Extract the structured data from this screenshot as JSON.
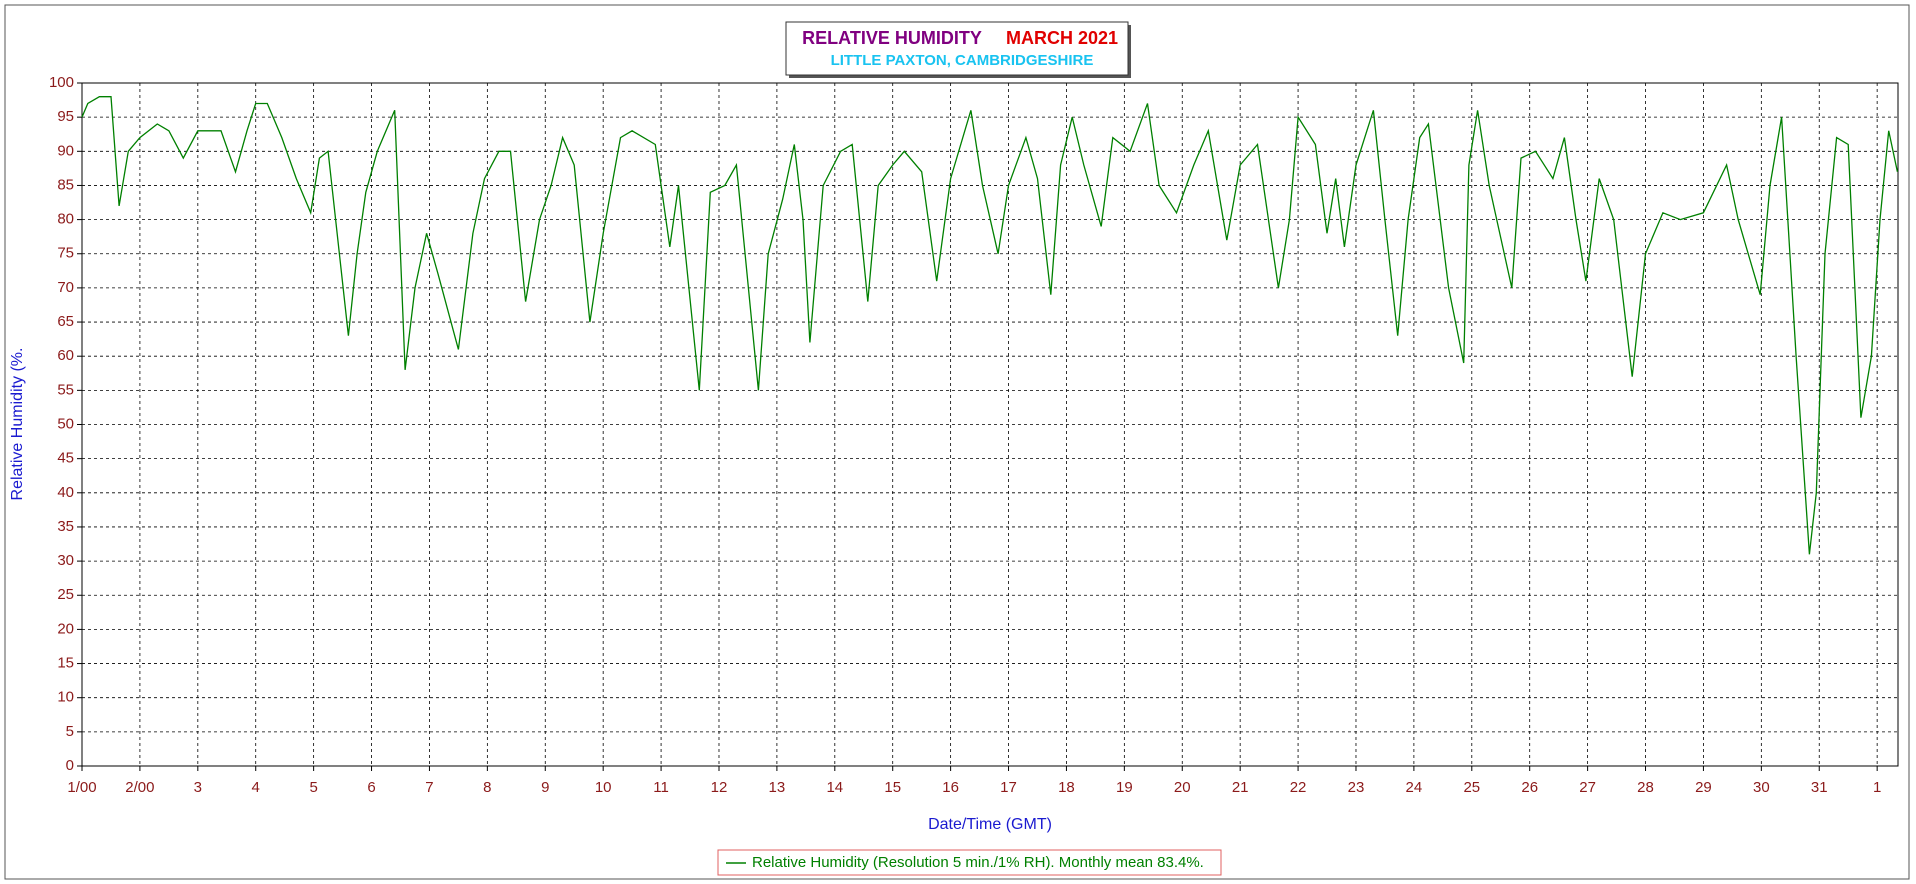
{
  "chart_data": {
    "type": "line",
    "title": "RELATIVE HUMIDITY",
    "title_period": "MARCH 2021",
    "subtitle": "LITTLE PAXTON, CAMBRIDGESHIRE",
    "x_label": "Date/Time (GMT)",
    "y_label": "Relative Humidity (%.",
    "grid": true,
    "xlim": [
      0,
      31.36
    ],
    "ylim": [
      0,
      100
    ],
    "yticks": [
      0,
      5,
      10,
      15,
      20,
      25,
      30,
      35,
      40,
      45,
      50,
      55,
      60,
      65,
      70,
      75,
      80,
      85,
      90,
      95,
      100
    ],
    "xticks": [
      {
        "value": 0,
        "label": "1/00"
      },
      {
        "value": 1,
        "label": "2/00"
      },
      {
        "value": 2,
        "label": "3"
      },
      {
        "value": 3,
        "label": "4"
      },
      {
        "value": 4,
        "label": "5"
      },
      {
        "value": 5,
        "label": "6"
      },
      {
        "value": 6,
        "label": "7"
      },
      {
        "value": 7,
        "label": "8"
      },
      {
        "value": 8,
        "label": "9"
      },
      {
        "value": 9,
        "label": "10"
      },
      {
        "value": 10,
        "label": "11"
      },
      {
        "value": 11,
        "label": "12"
      },
      {
        "value": 12,
        "label": "13"
      },
      {
        "value": 13,
        "label": "14"
      },
      {
        "value": 14,
        "label": "15"
      },
      {
        "value": 15,
        "label": "16"
      },
      {
        "value": 16,
        "label": "17"
      },
      {
        "value": 17,
        "label": "18"
      },
      {
        "value": 18,
        "label": "19"
      },
      {
        "value": 19,
        "label": "20"
      },
      {
        "value": 20,
        "label": "21"
      },
      {
        "value": 21,
        "label": "22"
      },
      {
        "value": 22,
        "label": "23"
      },
      {
        "value": 23,
        "label": "24"
      },
      {
        "value": 24,
        "label": "25"
      },
      {
        "value": 25,
        "label": "26"
      },
      {
        "value": 26,
        "label": "27"
      },
      {
        "value": 27,
        "label": "28"
      },
      {
        "value": 28,
        "label": "29"
      },
      {
        "value": 29,
        "label": "30"
      },
      {
        "value": 30,
        "label": "31"
      },
      {
        "value": 31,
        "label": "1"
      }
    ],
    "x": [
      0,
      0.1,
      0.3,
      0.5,
      0.64,
      0.8,
      1.0,
      1.3,
      1.5,
      1.75,
      2.0,
      2.4,
      2.65,
      2.85,
      3.0,
      3.2,
      3.45,
      3.7,
      3.95,
      4.1,
      4.25,
      4.6,
      4.75,
      4.9,
      5.1,
      5.4,
      5.58,
      5.75,
      5.95,
      6.15,
      6.5,
      6.75,
      6.95,
      7.2,
      7.4,
      7.66,
      7.9,
      8.1,
      8.3,
      8.5,
      8.77,
      9.0,
      9.3,
      9.5,
      9.9,
      10.15,
      10.3,
      10.66,
      10.85,
      11.1,
      11.3,
      11.68,
      11.85,
      12.1,
      12.3,
      12.45,
      12.57,
      12.8,
      13.1,
      13.3,
      13.57,
      13.75,
      14.0,
      14.2,
      14.5,
      14.76,
      15.0,
      15.35,
      15.55,
      15.82,
      16.0,
      16.3,
      16.5,
      16.73,
      16.9,
      17.1,
      17.3,
      17.6,
      17.8,
      18.1,
      18.4,
      18.6,
      18.9,
      19.2,
      19.45,
      19.77,
      20.0,
      20.3,
      20.66,
      20.85,
      21.0,
      21.3,
      21.5,
      21.65,
      21.8,
      22.0,
      22.3,
      22.5,
      22.72,
      22.9,
      23.1,
      23.25,
      23.6,
      23.86,
      23.95,
      24.1,
      24.3,
      24.69,
      24.85,
      25.1,
      25.4,
      25.6,
      25.8,
      25.97,
      26.2,
      26.45,
      26.77,
      27.0,
      27.3,
      27.6,
      28.0,
      28.4,
      28.6,
      28.98,
      29.15,
      29.35,
      29.6,
      29.83,
      29.95,
      30.1,
      30.3,
      30.5,
      30.72,
      30.9,
      31.05,
      31.2,
      31.35
    ],
    "series": [
      {
        "name": "Relative Humidity (Resolution 5 min./1% RH). Monthly mean 83.4%.",
        "color": "#008000",
        "values": [
          95,
          97,
          98,
          98,
          82,
          90,
          92,
          94,
          93,
          89,
          93,
          93,
          87,
          93,
          97,
          97,
          92,
          86,
          81,
          89,
          90,
          63,
          75,
          84,
          90,
          96,
          58,
          70,
          78,
          72,
          61,
          78,
          86,
          90,
          90,
          68,
          80,
          85,
          92,
          88,
          65,
          78,
          92,
          93,
          91,
          76,
          85,
          55,
          84,
          85,
          88,
          55,
          75,
          83,
          91,
          80,
          62,
          85,
          90,
          91,
          68,
          85,
          88,
          90,
          87,
          71,
          86,
          96,
          85,
          75,
          85,
          92,
          86,
          69,
          88,
          95,
          88,
          79,
          92,
          90,
          97,
          85,
          81,
          88,
          93,
          77,
          88,
          91,
          70,
          80,
          95,
          91,
          78,
          86,
          76,
          88,
          96,
          80,
          63,
          80,
          92,
          94,
          70,
          59,
          88,
          96,
          85,
          70,
          89,
          90,
          86,
          92,
          80,
          71,
          86,
          80,
          57,
          75,
          81,
          80,
          81,
          88,
          80,
          69,
          85,
          95,
          60,
          31,
          40,
          75,
          92,
          91,
          51,
          60,
          80,
          93,
          87
        ]
      }
    ]
  }
}
